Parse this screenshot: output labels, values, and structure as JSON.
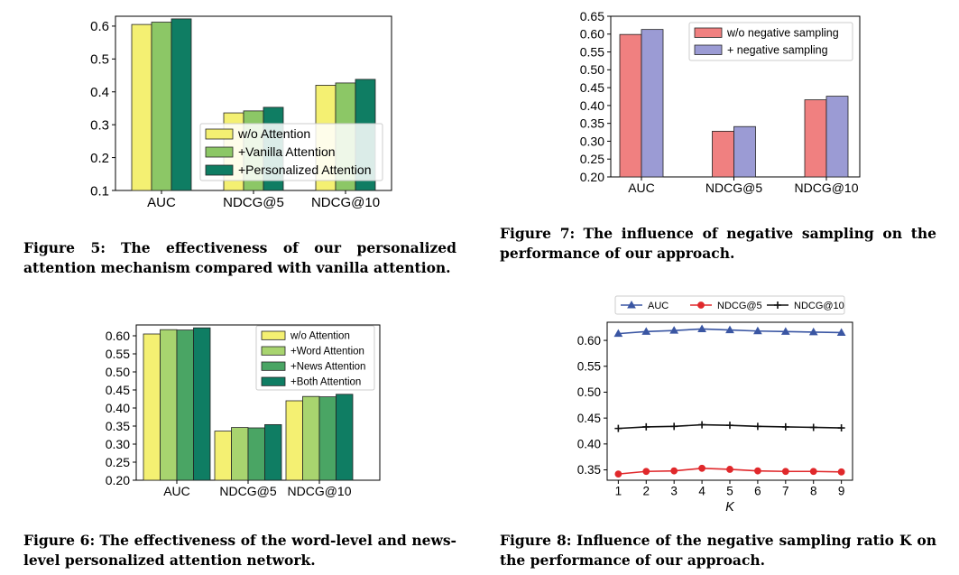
{
  "figures": [
    {
      "id": "fig5",
      "caption_lead": "Figure 5:",
      "caption_text": "The effectiveness of our personalized attention mechanism compared with vanilla attention."
    },
    {
      "id": "fig6",
      "caption_lead": "Figure 6:",
      "caption_text": "The effectiveness of the word-level and news-level personalized attention network."
    },
    {
      "id": "fig7",
      "caption_lead": "Figure 7:",
      "caption_text": "The influence of negative sampling on the performance of our approach."
    },
    {
      "id": "fig8",
      "caption_lead": "Figure 8:",
      "caption_text": "Influence of the negative sampling ratio K on the performance of our approach."
    }
  ],
  "chart_data": [
    {
      "id": "fig5",
      "type": "bar",
      "categories": [
        "AUC",
        "NDCG@5",
        "NDCG@10"
      ],
      "series": [
        {
          "name": "w/o Attention",
          "values": [
            0.605,
            0.336,
            0.42
          ],
          "color": "#f4f072"
        },
        {
          "name": "+Vanilla Attention",
          "values": [
            0.612,
            0.342,
            0.427
          ],
          "color": "#8cc766"
        },
        {
          "name": "+Personalized Attention",
          "values": [
            0.622,
            0.353,
            0.438
          ],
          "color": "#0f7d63"
        }
      ],
      "ylim": [
        0.1,
        0.63
      ],
      "yticks": [
        0.1,
        0.2,
        0.3,
        0.4,
        0.5,
        0.6
      ],
      "ytick_labels": [
        "0.1",
        "0.2",
        "0.3",
        "0.4",
        "0.5",
        "0.6"
      ],
      "legend": "center-right",
      "grid": false
    },
    {
      "id": "fig6",
      "type": "bar",
      "categories": [
        "AUC",
        "NDCG@5",
        "NDCG@10"
      ],
      "series": [
        {
          "name": "w/o Attention",
          "values": [
            0.605,
            0.336,
            0.42
          ],
          "color": "#f4f072"
        },
        {
          "name": "+Word Attention",
          "values": [
            0.617,
            0.346,
            0.432
          ],
          "color": "#a8d46f"
        },
        {
          "name": "+News Attention",
          "values": [
            0.616,
            0.345,
            0.431
          ],
          "color": "#4aa564"
        },
        {
          "name": "+Both Attention",
          "values": [
            0.622,
            0.354,
            0.438
          ],
          "color": "#0f7d63"
        }
      ],
      "ylim": [
        0.2,
        0.63
      ],
      "yticks": [
        0.2,
        0.25,
        0.3,
        0.35,
        0.4,
        0.45,
        0.5,
        0.55,
        0.6
      ],
      "ytick_labels": [
        "0.20",
        "0.25",
        "0.30",
        "0.35",
        "0.40",
        "0.45",
        "0.50",
        "0.55",
        "0.60"
      ],
      "legend": "top-right",
      "grid": false
    },
    {
      "id": "fig7",
      "type": "bar",
      "categories": [
        "AUC",
        "NDCG@5",
        "NDCG@10"
      ],
      "series": [
        {
          "name": "w/o negative sampling",
          "values": [
            0.599,
            0.328,
            0.416
          ],
          "color": "#f08080"
        },
        {
          "name": "+ negative sampling",
          "values": [
            0.613,
            0.341,
            0.426
          ],
          "color": "#9b9bd4"
        }
      ],
      "ylim": [
        0.2,
        0.65
      ],
      "yticks": [
        0.2,
        0.25,
        0.3,
        0.35,
        0.4,
        0.45,
        0.5,
        0.55,
        0.6,
        0.65
      ],
      "ytick_labels": [
        "0.20",
        "0.25",
        "0.30",
        "0.35",
        "0.40",
        "0.45",
        "0.50",
        "0.55",
        "0.60",
        "0.65"
      ],
      "legend": "top-right",
      "grid": false
    },
    {
      "id": "fig8",
      "type": "line",
      "x": [
        1,
        2,
        3,
        4,
        5,
        6,
        7,
        8,
        9
      ],
      "xlabel": "K",
      "series": [
        {
          "name": "AUC",
          "values": [
            0.613,
            0.617,
            0.619,
            0.622,
            0.62,
            0.618,
            0.617,
            0.616,
            0.615
          ],
          "color": "#3a56a3",
          "marker": "triangle"
        },
        {
          "name": "NDCG@5",
          "values": [
            0.342,
            0.347,
            0.348,
            0.353,
            0.351,
            0.348,
            0.347,
            0.347,
            0.346
          ],
          "color": "#e0282b",
          "marker": "circle"
        },
        {
          "name": "NDCG@10",
          "values": [
            0.43,
            0.433,
            0.434,
            0.437,
            0.436,
            0.434,
            0.433,
            0.432,
            0.431
          ],
          "color": "#111111",
          "marker": "plus"
        }
      ],
      "ylim": [
        0.33,
        0.635
      ],
      "yticks": [
        0.35,
        0.4,
        0.45,
        0.5,
        0.55,
        0.6
      ],
      "ytick_labels": [
        "0.35",
        "0.40",
        "0.45",
        "0.50",
        "0.55",
        "0.60"
      ],
      "xlim": [
        0.6,
        9.4
      ],
      "legend": "top (outside)",
      "grid": false
    }
  ]
}
